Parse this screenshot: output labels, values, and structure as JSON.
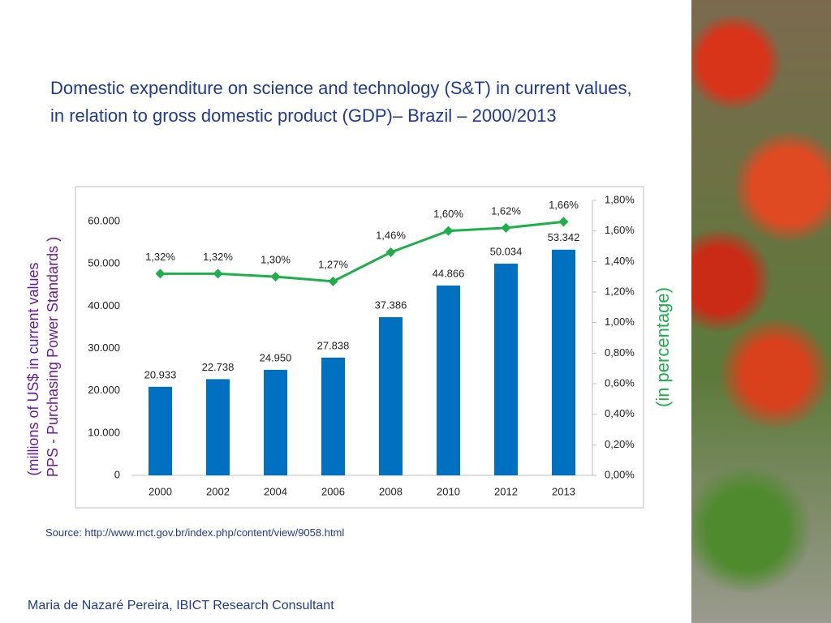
{
  "title": "Domestic expenditure on science and technology (S&T) in current values, in relation to gross domestic product  (GDP)– Brazil – 2000/2013",
  "chart_data": {
    "type": "bar",
    "categories": [
      "2000",
      "2002",
      "2004",
      "2006",
      "2008",
      "2010",
      "2012",
      "2013"
    ],
    "series": [
      {
        "type": "bar",
        "color": "#0070c0",
        "values": [
          20933,
          22738,
          24950,
          27838,
          37386,
          44866,
          50034,
          53342
        ],
        "value_labels": [
          "20.933",
          "22.738",
          "24.950",
          "27.838",
          "37.386",
          "44.866",
          "50.034",
          "53.342"
        ]
      },
      {
        "type": "line",
        "axis": "y2",
        "color": "#1fae4b",
        "values": [
          1.32,
          1.32,
          1.3,
          1.27,
          1.46,
          1.6,
          1.62,
          1.66
        ],
        "value_labels": [
          "1,32%",
          "1,32%",
          "1,30%",
          "1,27%",
          "1,46%",
          "1,60%",
          "1,62%",
          "1,66%"
        ]
      }
    ],
    "ylim": [
      0,
      65000
    ],
    "yticks": [
      0,
      {
        "value": 10000,
        "label": "10.000"
      },
      {
        "value": 20000,
        "label": "20.000"
      },
      {
        "value": 30000,
        "label": "30.000"
      },
      {
        "value": 40000,
        "label": "40.000"
      },
      {
        "value": 50000,
        "label": "50.000"
      },
      {
        "value": 60000,
        "label": "60.000"
      }
    ],
    "y2lim": [
      0,
      1.8
    ],
    "y2ticks": [
      {
        "value": 0,
        "label": "0,00%"
      },
      {
        "value": 0.2,
        "label": "0,20%"
      },
      {
        "value": 0.4,
        "label": "0,40%"
      },
      {
        "value": 0.6,
        "label": "0,60%"
      },
      {
        "value": 0.8,
        "label": "0,80%"
      },
      {
        "value": 1.0,
        "label": "1,00%"
      },
      {
        "value": 1.2,
        "label": "1,20%"
      },
      {
        "value": 1.4,
        "label": "1,40%"
      },
      {
        "value": 1.6,
        "label": "1,60%"
      },
      {
        "value": 1.8,
        "label": "1,80%"
      }
    ],
    "ylabel": [
      "(millions of US$ in current values",
      "PPS -  Purchasing Power  Standards )"
    ],
    "y2label": "(in percentage)",
    "grid": false
  },
  "source": "Source: http://www.mct.gov.br/index.php/content/view/9058.html",
  "footer": "Maria de Nazaré Pereira, IBICT Research Consultant"
}
